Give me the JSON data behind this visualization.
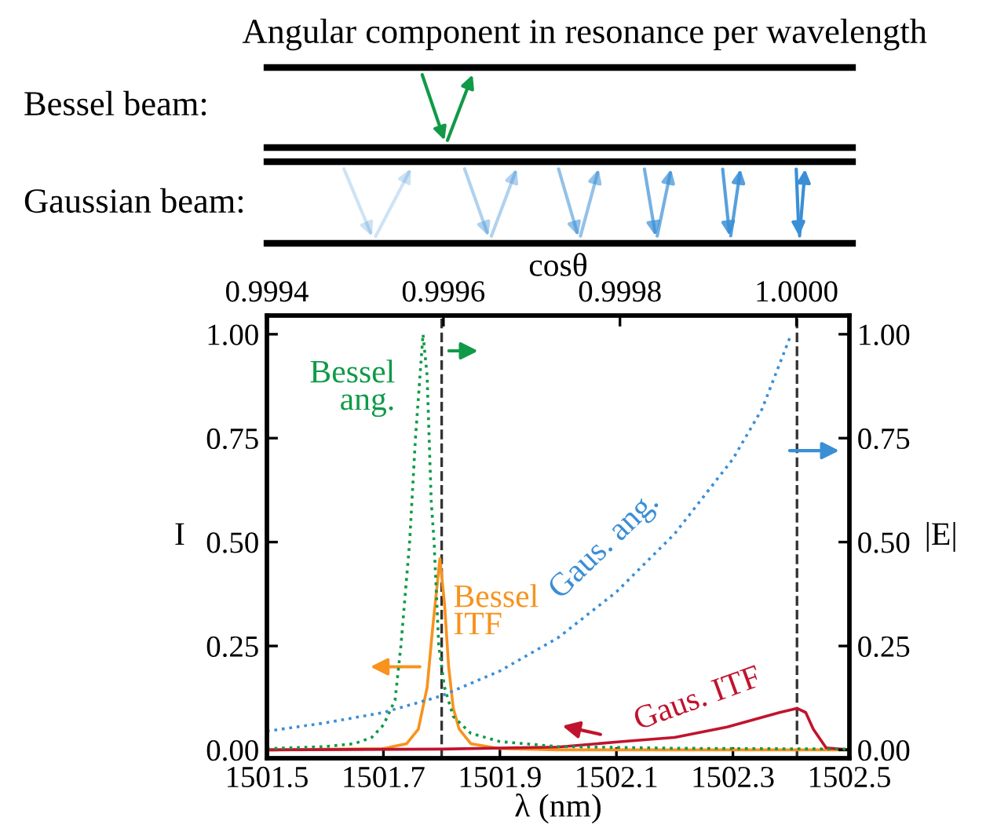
{
  "chart_data": {
    "type": "line",
    "title": "Angular component in resonance per wavelength",
    "annotations": [
      "Bessel beam:",
      "Gaussian beam:"
    ],
    "xlabel": "λ (nm)",
    "ylabel": "I",
    "y2label": "|E|",
    "x2label": "cosθ",
    "xlim": [
      1501.5,
      1502.5
    ],
    "xticks": [
      {
        "value": 1501.5,
        "label": "1501.5"
      },
      {
        "value": 1501.7,
        "label": "1501.7"
      },
      {
        "value": 1501.9,
        "label": "1501.9"
      },
      {
        "value": 1502.1,
        "label": "1502.1"
      },
      {
        "value": 1502.3,
        "label": "1502.3"
      },
      {
        "value": 1502.5,
        "label": "1502.5"
      }
    ],
    "x2lim": [
      0.9994,
      1.00006
    ],
    "x2ticks": [
      0.9994,
      0.9996,
      0.9998,
      {
        "value": 1.0,
        "label": "1.0000"
      }
    ],
    "ylim": [
      -0.02,
      1.045
    ],
    "yticks": [
      {
        "value": 0,
        "label": "0.00"
      },
      0.25,
      {
        "value": 0.5,
        "label": "0.50"
      },
      0.75,
      {
        "value": 1.0,
        "label": "1.00"
      }
    ],
    "y2lim": [
      -0.02,
      1.045
    ],
    "y2ticks": [
      {
        "value": 0,
        "label": "0.00"
      },
      0.25,
      {
        "value": 0.5,
        "label": "0.50"
      },
      0.75,
      {
        "value": 1.0,
        "label": "1.00"
      }
    ],
    "ref_lines": [
      {
        "axis": "x",
        "value": 1501.8,
        "color": "#333333",
        "line_style": "dashed"
      },
      {
        "axis": "x",
        "value": 1502.41,
        "color": "#333333",
        "line_style": "dashed"
      }
    ],
    "grid": false,
    "legend": false,
    "marker": "none",
    "series": [
      {
        "name": "Bessel ang.",
        "color": "#109a48",
        "axis": "y2",
        "line_style": "dotted",
        "x": [
          1501.5,
          1501.6,
          1501.65,
          1501.68,
          1501.7,
          1501.72,
          1501.73,
          1501.745,
          1501.755,
          1501.768,
          1501.775,
          1501.782,
          1501.787,
          1501.795,
          1501.805,
          1501.82,
          1501.85,
          1501.9,
          1502.0,
          1502.2,
          1502.5
        ],
        "values": [
          0.003,
          0.008,
          0.015,
          0.03,
          0.06,
          0.12,
          0.25,
          0.5,
          0.75,
          1.0,
          0.9,
          0.6,
          0.5,
          0.25,
          0.15,
          0.08,
          0.04,
          0.02,
          0.008,
          0.004,
          0.002
        ]
      },
      {
        "name": "Gaus. ang.",
        "color": "#3a8fd6",
        "axis": "y2",
        "line_style": "dotted",
        "x": [
          1501.5,
          1501.6,
          1501.7,
          1501.8,
          1501.9,
          1502.0,
          1502.1,
          1502.2,
          1502.3,
          1502.35,
          1502.4
        ],
        "values": [
          0.045,
          0.065,
          0.09,
          0.13,
          0.19,
          0.27,
          0.38,
          0.52,
          0.7,
          0.82,
          1.0
        ]
      },
      {
        "name": "Bessel ITF",
        "color": "#f7931e",
        "axis": "y",
        "line_style": "solid",
        "x": [
          1501.5,
          1501.7,
          1501.74,
          1501.76,
          1501.775,
          1501.785,
          1501.797,
          1501.805,
          1501.812,
          1501.82,
          1501.83,
          1501.85,
          1501.9,
          1502.0,
          1502.5
        ],
        "values": [
          0,
          0.003,
          0.015,
          0.05,
          0.15,
          0.3,
          0.46,
          0.35,
          0.2,
          0.1,
          0.05,
          0.015,
          0.003,
          0,
          0
        ]
      },
      {
        "name": "Gaus. ITF",
        "color": "#c0142e",
        "axis": "y",
        "line_style": "solid",
        "x": [
          1501.5,
          1501.8,
          1502.0,
          1502.11,
          1502.2,
          1502.29,
          1502.38,
          1502.41,
          1502.425,
          1502.438,
          1502.46,
          1502.5
        ],
        "values": [
          0,
          0.002,
          0.007,
          0.02,
          0.03,
          0.055,
          0.09,
          0.1,
          0.09,
          0.05,
          0.005,
          0
        ]
      }
    ]
  }
}
